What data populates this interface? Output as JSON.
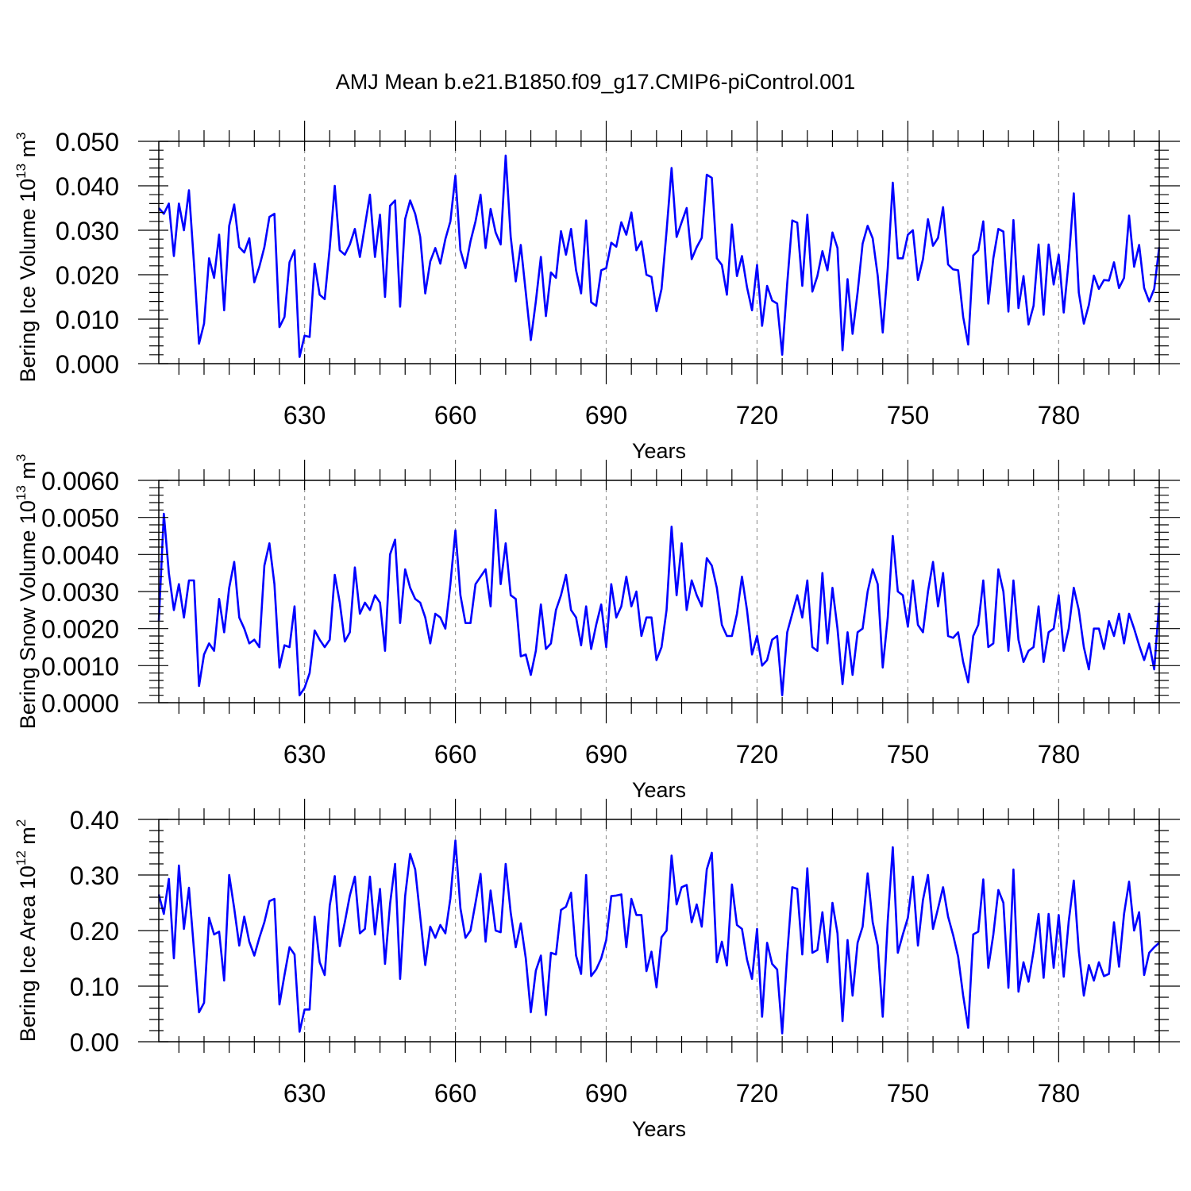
{
  "title": "AMJ Mean b.e21.B1850.f09_g17.CMIP6-piControl.001",
  "colors": {
    "line": "#0000ff",
    "axis": "#000000",
    "grid": "#999999"
  },
  "chart_data": [
    {
      "type": "line",
      "title": "AMJ Mean b.e21.B1850.f09_g17.CMIP6-piControl.001",
      "xlabel": "Years",
      "ylabel": "Bering Ice Volume",
      "yunit_base": "10",
      "yunit_exp": "13",
      "yunit_tail": " m",
      "yunit_tail_exp": "3",
      "xlim": [
        601,
        800
      ],
      "ylim": [
        0,
        0.05
      ],
      "xticks": [
        630,
        660,
        690,
        720,
        750,
        780
      ],
      "xtick_labels": [
        "630",
        "660",
        "690",
        "720",
        "750",
        "780"
      ],
      "yticks": [
        0,
        0.01,
        0.02,
        0.03,
        0.04,
        0.05
      ],
      "ytick_labels": [
        "0.000",
        "0.010",
        "0.020",
        "0.030",
        "0.040",
        "0.050"
      ],
      "x_start": 601,
      "series": [
        {
          "name": "Bering Ice Volume",
          "values": [
            0.035,
            0.0337,
            0.036,
            0.0242,
            0.036,
            0.03,
            0.039,
            0.0225,
            0.0045,
            0.009,
            0.0237,
            0.0193,
            0.029,
            0.012,
            0.031,
            0.0358,
            0.0262,
            0.025,
            0.0282,
            0.0183,
            0.0218,
            0.0262,
            0.033,
            0.0337,
            0.0082,
            0.0105,
            0.0228,
            0.0255,
            0.0015,
            0.0063,
            0.006,
            0.0225,
            0.0155,
            0.0145,
            0.026,
            0.04,
            0.0255,
            0.0245,
            0.0268,
            0.0303,
            0.024,
            0.031,
            0.038,
            0.024,
            0.0335,
            0.015,
            0.0355,
            0.0367,
            0.0128,
            0.0325,
            0.0367,
            0.0337,
            0.0285,
            0.0158,
            0.023,
            0.026,
            0.0225,
            0.028,
            0.032,
            0.0423,
            0.0255,
            0.0215,
            0.0275,
            0.032,
            0.038,
            0.026,
            0.0348,
            0.0295,
            0.0268,
            0.0468,
            0.0285,
            0.0185,
            0.0267,
            0.016,
            0.0053,
            0.014,
            0.024,
            0.0107,
            0.0205,
            0.0193,
            0.0298,
            0.0245,
            0.0303,
            0.021,
            0.0158,
            0.0322,
            0.0138,
            0.013,
            0.021,
            0.0215,
            0.0272,
            0.0263,
            0.0318,
            0.029,
            0.034,
            0.0255,
            0.0275,
            0.02,
            0.0195,
            0.0118,
            0.0168,
            0.0298,
            0.044,
            0.0285,
            0.0318,
            0.035,
            0.0235,
            0.0262,
            0.0283,
            0.0425,
            0.0418,
            0.0237,
            0.0222,
            0.0155,
            0.0313,
            0.0197,
            0.0242,
            0.0172,
            0.012,
            0.0222,
            0.0085,
            0.0175,
            0.0142,
            0.0135,
            0.002,
            0.018,
            0.0322,
            0.0317,
            0.0175,
            0.0335,
            0.0162,
            0.0197,
            0.0253,
            0.021,
            0.0295,
            0.026,
            0.003,
            0.019,
            0.0067,
            0.016,
            0.027,
            0.031,
            0.0282,
            0.0198,
            0.007,
            0.0215,
            0.0407,
            0.0237,
            0.0237,
            0.029,
            0.03,
            0.0188,
            0.0235,
            0.0325,
            0.0265,
            0.0283,
            0.0352,
            0.0223,
            0.0212,
            0.021,
            0.0105,
            0.0043,
            0.0243,
            0.0255,
            0.032,
            0.0135,
            0.0237,
            0.0303,
            0.0297,
            0.0117,
            0.0323,
            0.0125,
            0.0197,
            0.0088,
            0.013,
            0.0268,
            0.011,
            0.0268,
            0.0178,
            0.0245,
            0.0115,
            0.0232,
            0.0383,
            0.016,
            0.009,
            0.0132,
            0.0198,
            0.0168,
            0.0188,
            0.0187,
            0.0228,
            0.017,
            0.0193,
            0.0333,
            0.0218,
            0.0267,
            0.017,
            0.014,
            0.0168,
            0.0262
          ]
        }
      ]
    },
    {
      "type": "line",
      "title": "",
      "xlabel": "Years",
      "ylabel": "Bering Snow Volume",
      "yunit_base": "10",
      "yunit_exp": "13",
      "yunit_tail": " m",
      "yunit_tail_exp": "3",
      "xlim": [
        601,
        800
      ],
      "ylim": [
        0,
        0.006
      ],
      "xticks": [
        630,
        660,
        690,
        720,
        750,
        780
      ],
      "xtick_labels": [
        "630",
        "660",
        "690",
        "720",
        "750",
        "780"
      ],
      "yticks": [
        0,
        0.001,
        0.002,
        0.003,
        0.004,
        0.005,
        0.006
      ],
      "ytick_labels": [
        "0.0000",
        "0.0010",
        "0.0020",
        "0.0030",
        "0.0040",
        "0.0050",
        "0.0060"
      ],
      "x_start": 601,
      "series": [
        {
          "name": "Bering Snow Volume",
          "values": [
            0.0022,
            0.0051,
            0.0035,
            0.0025,
            0.0032,
            0.0023,
            0.0033,
            0.0033,
            0.00045,
            0.0013,
            0.0016,
            0.0014,
            0.0028,
            0.0019,
            0.0031,
            0.0038,
            0.0023,
            0.002,
            0.0016,
            0.0017,
            0.0015,
            0.0037,
            0.0043,
            0.0032,
            0.00095,
            0.00155,
            0.0015,
            0.0026,
            0.0002,
            0.0004,
            0.0008,
            0.00195,
            0.0017,
            0.0015,
            0.0017,
            0.00345,
            0.0027,
            0.00165,
            0.0019,
            0.00365,
            0.0024,
            0.0027,
            0.0025,
            0.0029,
            0.0027,
            0.0014,
            0.004,
            0.0044,
            0.00215,
            0.0036,
            0.0031,
            0.0028,
            0.0027,
            0.0023,
            0.0016,
            0.0024,
            0.0023,
            0.002,
            0.0032,
            0.00465,
            0.0029,
            0.00215,
            0.00215,
            0.0032,
            0.0034,
            0.0036,
            0.0026,
            0.0052,
            0.0032,
            0.0043,
            0.0029,
            0.0028,
            0.00125,
            0.0013,
            0.00075,
            0.0014,
            0.00265,
            0.00145,
            0.0016,
            0.0025,
            0.0029,
            0.00345,
            0.0025,
            0.0023,
            0.00155,
            0.0026,
            0.00145,
            0.0021,
            0.00265,
            0.0015,
            0.0032,
            0.0023,
            0.0026,
            0.0034,
            0.0026,
            0.003,
            0.0018,
            0.0023,
            0.0023,
            0.00115,
            0.0015,
            0.0025,
            0.00475,
            0.0029,
            0.0043,
            0.0025,
            0.0033,
            0.0029,
            0.0026,
            0.0039,
            0.0037,
            0.0031,
            0.0021,
            0.0018,
            0.0018,
            0.0024,
            0.0034,
            0.0025,
            0.0013,
            0.0018,
            0.001,
            0.00115,
            0.0017,
            0.0018,
            0.0002,
            0.0019,
            0.0024,
            0.0029,
            0.0023,
            0.0033,
            0.0015,
            0.0014,
            0.0035,
            0.0016,
            0.0031,
            0.002,
            0.0005,
            0.0019,
            0.00075,
            0.0019,
            0.002,
            0.003,
            0.0036,
            0.0032,
            0.00095,
            0.0023,
            0.0045,
            0.003,
            0.0029,
            0.00205,
            0.0033,
            0.0021,
            0.0019,
            0.003,
            0.0038,
            0.0026,
            0.0035,
            0.0018,
            0.00175,
            0.0019,
            0.0011,
            0.00055,
            0.0018,
            0.0021,
            0.0033,
            0.0015,
            0.0016,
            0.0036,
            0.003,
            0.0014,
            0.0033,
            0.0017,
            0.0011,
            0.0014,
            0.0015,
            0.0026,
            0.0011,
            0.0019,
            0.002,
            0.0029,
            0.0014,
            0.002,
            0.0031,
            0.0025,
            0.0015,
            0.0009,
            0.002,
            0.002,
            0.00145,
            0.0022,
            0.0018,
            0.0024,
            0.0016,
            0.0024,
            0.002,
            0.00155,
            0.00115,
            0.0016,
            0.0009,
            0.0027
          ]
        }
      ]
    },
    {
      "type": "line",
      "title": "",
      "xlabel": "Years",
      "ylabel": "Bering Ice Area",
      "yunit_base": "10",
      "yunit_exp": "12",
      "yunit_tail": " m",
      "yunit_tail_exp": "2",
      "xlim": [
        601,
        800
      ],
      "ylim": [
        0,
        0.4
      ],
      "xticks": [
        630,
        660,
        690,
        720,
        750,
        780
      ],
      "xtick_labels": [
        "630",
        "660",
        "690",
        "720",
        "750",
        "780"
      ],
      "yticks": [
        0,
        0.1,
        0.2,
        0.3,
        0.4
      ],
      "ytick_labels": [
        "0.00",
        "0.10",
        "0.20",
        "0.30",
        "0.40"
      ],
      "x_start": 601,
      "series": [
        {
          "name": "Bering Ice Area",
          "values": [
            0.265,
            0.23,
            0.293,
            0.15,
            0.317,
            0.203,
            0.277,
            0.165,
            0.053,
            0.07,
            0.223,
            0.193,
            0.198,
            0.11,
            0.3,
            0.24,
            0.173,
            0.225,
            0.18,
            0.155,
            0.187,
            0.215,
            0.253,
            0.257,
            0.067,
            0.12,
            0.17,
            0.157,
            0.018,
            0.058,
            0.058,
            0.225,
            0.143,
            0.12,
            0.245,
            0.298,
            0.172,
            0.215,
            0.263,
            0.297,
            0.195,
            0.203,
            0.297,
            0.193,
            0.275,
            0.14,
            0.248,
            0.32,
            0.113,
            0.262,
            0.338,
            0.31,
            0.225,
            0.138,
            0.207,
            0.187,
            0.21,
            0.195,
            0.258,
            0.362,
            0.24,
            0.187,
            0.2,
            0.25,
            0.302,
            0.18,
            0.272,
            0.2,
            0.197,
            0.32,
            0.232,
            0.17,
            0.213,
            0.15,
            0.053,
            0.128,
            0.155,
            0.048,
            0.16,
            0.157,
            0.237,
            0.243,
            0.268,
            0.155,
            0.122,
            0.3,
            0.118,
            0.13,
            0.15,
            0.183,
            0.262,
            0.263,
            0.265,
            0.17,
            0.257,
            0.228,
            0.228,
            0.127,
            0.162,
            0.098,
            0.188,
            0.2,
            0.335,
            0.247,
            0.278,
            0.282,
            0.215,
            0.247,
            0.207,
            0.31,
            0.34,
            0.143,
            0.18,
            0.137,
            0.283,
            0.21,
            0.203,
            0.148,
            0.113,
            0.203,
            0.045,
            0.178,
            0.14,
            0.13,
            0.015,
            0.157,
            0.278,
            0.275,
            0.157,
            0.312,
            0.16,
            0.165,
            0.233,
            0.143,
            0.25,
            0.195,
            0.037,
            0.183,
            0.083,
            0.178,
            0.207,
            0.303,
            0.215,
            0.173,
            0.045,
            0.218,
            0.35,
            0.16,
            0.193,
            0.223,
            0.297,
            0.173,
            0.255,
            0.3,
            0.203,
            0.24,
            0.278,
            0.225,
            0.192,
            0.153,
            0.083,
            0.025,
            0.193,
            0.198,
            0.292,
            0.133,
            0.193,
            0.273,
            0.25,
            0.097,
            0.31,
            0.09,
            0.143,
            0.108,
            0.163,
            0.23,
            0.115,
            0.23,
            0.133,
            0.228,
            0.117,
            0.217,
            0.29,
            0.163,
            0.083,
            0.138,
            0.11,
            0.143,
            0.118,
            0.122,
            0.215,
            0.135,
            0.23,
            0.288,
            0.2,
            0.233,
            0.12,
            0.16,
            0.17,
            0.178
          ]
        }
      ]
    }
  ]
}
